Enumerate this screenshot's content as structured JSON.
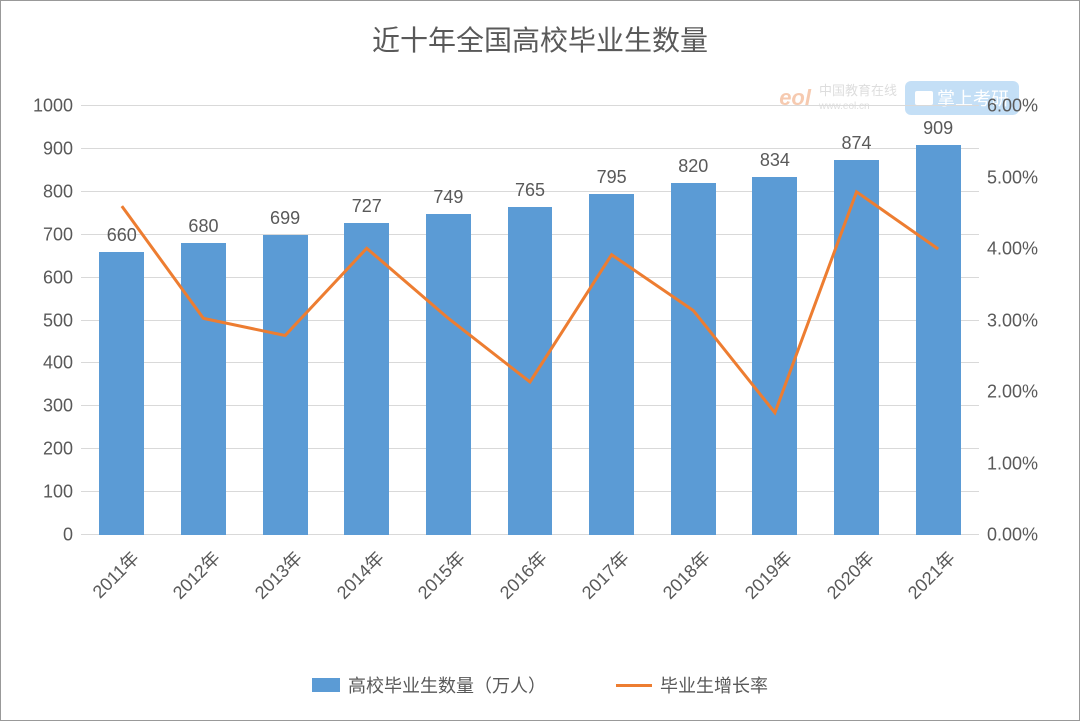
{
  "chart": {
    "type": "bar+line",
    "title": "近十年全国高校毕业生数量",
    "title_fontsize": 28,
    "title_color": "#595959",
    "background_color": "#ffffff",
    "border_color": "#999999",
    "grid_color": "#d9d9d9",
    "label_fontsize": 18,
    "label_color": "#595959",
    "categories": [
      "2011年",
      "2012年",
      "2013年",
      "2014年",
      "2015年",
      "2016年",
      "2017年",
      "2018年",
      "2019年",
      "2020年",
      "2021年"
    ],
    "bar_series": {
      "name": "高校毕业生数量（万人）",
      "values": [
        660,
        680,
        699,
        727,
        749,
        765,
        795,
        820,
        834,
        874,
        909
      ],
      "color": "#5B9BD5",
      "bar_width": 0.55,
      "data_label_color": "#595959",
      "data_label_fontsize": 18
    },
    "line_series": {
      "name": "毕业生增长率",
      "values_pct": [
        4.6,
        3.03,
        2.79,
        4.01,
        3.03,
        2.14,
        3.92,
        3.14,
        1.71,
        4.8,
        4.0
      ],
      "color": "#ED7D31",
      "line_width": 3,
      "marker": "none"
    },
    "y_left": {
      "min": 0,
      "max": 1000,
      "tick_step": 100
    },
    "y_right": {
      "min": 0.0,
      "max": 6.0,
      "tick_step": 1.0,
      "format": "0.00%"
    },
    "watermarks": {
      "eol_logo_text": "eol",
      "eol_sub_text": "中国教育在线",
      "eol_sub_url": "www.eol.cn",
      "eol_color": "#e86a1f",
      "kao_text": "掌上考研",
      "kao_bg": "#5aa5e8",
      "kao_fg": "#ffffff"
    },
    "legend": {
      "bar_label": "高校毕业生数量（万人）",
      "line_label": "毕业生增长率"
    }
  }
}
